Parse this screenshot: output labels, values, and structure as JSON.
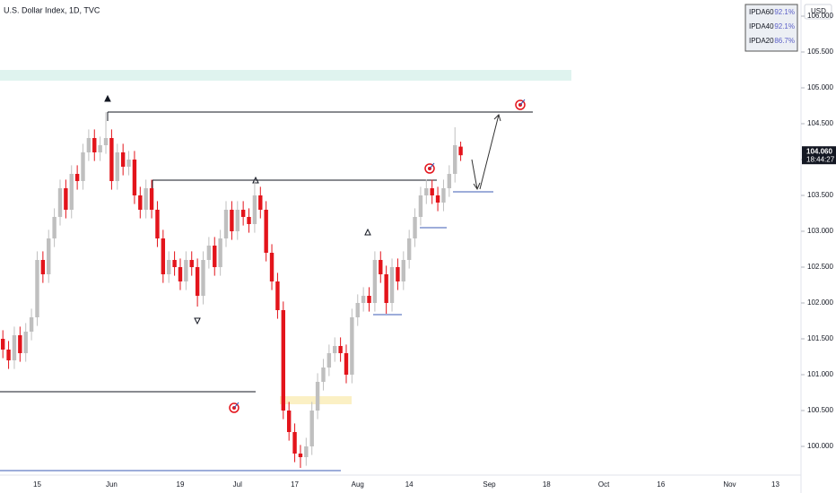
{
  "chart_data": {
    "type": "candlestick",
    "title": "U.S. Dollar Index, 1D, TVC",
    "currency": "USD",
    "categories": [
      null,
      null,
      null,
      null,
      null,
      null,
      "15",
      null,
      null,
      null,
      null,
      null,
      null,
      null,
      null,
      null,
      null,
      null,
      null,
      "Jun",
      null,
      null,
      null,
      null,
      null,
      null,
      null,
      null,
      null,
      null,
      null,
      "19",
      null,
      null,
      null,
      null,
      null,
      null,
      null,
      null,
      null,
      "Jul",
      null,
      null,
      null,
      null,
      null,
      null,
      null,
      null,
      null,
      "17",
      null,
      null,
      null,
      null,
      null,
      null,
      null,
      null,
      null,
      null,
      "Aug",
      null,
      null,
      null,
      null,
      null,
      null,
      null,
      null,
      "14",
      null,
      null,
      null,
      null,
      null,
      null,
      null,
      null,
      null,
      null,
      null,
      null,
      null,
      "Sep",
      null,
      null,
      null,
      null,
      null,
      null,
      null,
      null,
      null,
      "18",
      null,
      null,
      null,
      null,
      null,
      null,
      null,
      null,
      null,
      "Oct",
      null,
      null,
      null,
      null,
      null,
      null,
      null,
      null,
      null,
      "16",
      null,
      null,
      null,
      null,
      null,
      null,
      null,
      null,
      null,
      null,
      null,
      "Nov",
      null,
      null,
      null,
      null,
      null,
      null,
      null,
      "13"
    ],
    "open": [
      101.5,
      101.35,
      101.2,
      101.55,
      101.3,
      101.6,
      101.8,
      102.6,
      102.4,
      102.9,
      103.2,
      103.6,
      103.3,
      103.8,
      103.7,
      104.1,
      104.3,
      104.1,
      104.2,
      104.3,
      103.7,
      104.1,
      103.9,
      104.0,
      103.5,
      103.3,
      103.6,
      103.3,
      102.9,
      102.4,
      102.6,
      102.5,
      102.3,
      102.6,
      102.5,
      102.1,
      102.6,
      102.8,
      102.5,
      102.9,
      103.3,
      103.0,
      103.3,
      103.2,
      103.1,
      103.5,
      103.3,
      102.7,
      102.3,
      101.9,
      100.5,
      100.2,
      99.9,
      99.85,
      100.0,
      100.5,
      100.9,
      101.1,
      101.3,
      101.4,
      101.3,
      101.0,
      101.8,
      102.0,
      102.1,
      102.0,
      102.6,
      102.4,
      102.0,
      102.5,
      102.3,
      102.6,
      102.9,
      103.2,
      103.5,
      103.6,
      103.5,
      103.4,
      103.6,
      103.8,
      104.18,
      null,
      null,
      null,
      null,
      null,
      null,
      null,
      null,
      null,
      null,
      null,
      null,
      null,
      null,
      null,
      null,
      null,
      null,
      null,
      null,
      null,
      null,
      null,
      null,
      null,
      null,
      null,
      null,
      null,
      null,
      null,
      null,
      null,
      null,
      null,
      null,
      null,
      null,
      null,
      null,
      null,
      null,
      null,
      null,
      null,
      null,
      null,
      null,
      null,
      null,
      null,
      null,
      null,
      null,
      null
    ],
    "high": [
      101.62,
      101.47,
      101.67,
      101.67,
      101.72,
      101.92,
      102.72,
      102.72,
      103.02,
      103.32,
      103.72,
      103.72,
      103.92,
      103.92,
      104.22,
      104.42,
      104.42,
      104.32,
      104.66,
      104.42,
      104.22,
      104.22,
      104.12,
      104.12,
      103.62,
      103.72,
      103.72,
      103.42,
      103.02,
      102.72,
      102.72,
      102.62,
      102.72,
      102.72,
      102.62,
      102.72,
      102.92,
      102.92,
      103.02,
      103.42,
      103.42,
      103.42,
      103.42,
      103.32,
      103.71,
      103.62,
      103.42,
      102.82,
      102.42,
      102.02,
      100.62,
      100.32,
      100.02,
      100.12,
      100.62,
      101.02,
      101.22,
      101.42,
      101.52,
      101.52,
      101.42,
      101.92,
      102.12,
      102.22,
      102.22,
      102.72,
      102.72,
      102.52,
      102.62,
      102.62,
      102.72,
      103.02,
      103.32,
      103.62,
      103.72,
      103.72,
      103.62,
      103.72,
      103.92,
      104.45,
      104.25,
      null,
      null,
      null,
      null,
      null,
      null,
      null,
      null,
      null,
      null,
      null,
      null,
      null,
      null,
      null,
      null,
      null,
      null,
      null,
      null,
      null,
      null,
      null,
      null,
      null,
      null,
      null,
      null,
      null,
      null,
      null,
      null,
      null,
      null,
      null,
      null,
      null,
      null,
      null,
      null,
      null,
      null,
      null,
      null,
      null,
      null,
      null,
      null,
      null,
      null,
      null,
      null,
      null,
      null,
      null
    ],
    "low": [
      101.23,
      101.08,
      101.08,
      101.18,
      101.18,
      101.48,
      101.68,
      102.28,
      102.28,
      102.78,
      103.08,
      103.18,
      103.18,
      103.58,
      103.58,
      103.98,
      103.98,
      103.98,
      104.08,
      103.58,
      103.58,
      103.78,
      103.78,
      103.38,
      103.18,
      103.18,
      103.18,
      102.78,
      102.28,
      102.28,
      102.38,
      102.18,
      102.18,
      102.38,
      101.95,
      101.98,
      102.48,
      102.38,
      102.38,
      102.78,
      102.88,
      102.88,
      103.08,
      102.98,
      102.98,
      103.18,
      102.58,
      102.18,
      101.78,
      100.38,
      100.08,
      99.78,
      99.7,
      99.73,
      99.88,
      100.38,
      100.78,
      100.98,
      101.18,
      101.18,
      100.88,
      100.88,
      101.68,
      101.88,
      101.88,
      101.88,
      102.28,
      101.85,
      101.88,
      102.18,
      102.18,
      102.48,
      102.78,
      103.08,
      103.38,
      103.38,
      103.28,
      103.28,
      103.48,
      103.68,
      103.98,
      null,
      null,
      null,
      null,
      null,
      null,
      null,
      null,
      null,
      null,
      null,
      null,
      null,
      null,
      null,
      null,
      null,
      null,
      null,
      null,
      null,
      null,
      null,
      null,
      null,
      null,
      null,
      null,
      null,
      null,
      null,
      null,
      null,
      null,
      null,
      null,
      null,
      null,
      null,
      null,
      null,
      null,
      null,
      null,
      null,
      null,
      null,
      null,
      null,
      null,
      null,
      null,
      null,
      null,
      null
    ],
    "close": [
      101.35,
      101.2,
      101.55,
      101.3,
      101.6,
      101.8,
      102.6,
      102.4,
      102.9,
      103.2,
      103.6,
      103.3,
      103.8,
      103.7,
      104.1,
      104.3,
      104.1,
      104.2,
      104.3,
      103.7,
      104.1,
      103.9,
      104.0,
      103.5,
      103.3,
      103.6,
      103.3,
      102.9,
      102.4,
      102.6,
      102.5,
      102.3,
      102.6,
      102.5,
      102.1,
      102.6,
      102.8,
      102.5,
      102.9,
      103.3,
      103.0,
      103.3,
      103.2,
      103.1,
      103.5,
      103.3,
      102.7,
      102.3,
      101.9,
      100.5,
      100.2,
      99.9,
      99.85,
      100.0,
      100.5,
      100.9,
      101.1,
      101.3,
      101.4,
      101.3,
      101.0,
      101.8,
      102.0,
      102.1,
      102.0,
      102.6,
      102.4,
      102.0,
      102.5,
      102.3,
      102.6,
      102.9,
      103.2,
      103.5,
      103.6,
      103.5,
      103.4,
      103.6,
      103.8,
      104.2,
      104.06,
      null,
      null,
      null,
      null,
      null,
      null,
      null,
      null,
      null,
      null,
      null,
      null,
      null,
      null,
      null,
      null,
      null,
      null,
      null,
      null,
      null,
      null,
      null,
      null,
      null,
      null,
      null,
      null,
      null,
      null,
      null,
      null,
      null,
      null,
      null,
      null,
      null,
      null,
      null,
      null,
      null,
      null,
      null,
      null,
      null,
      null,
      null,
      null,
      null,
      null,
      null,
      null,
      null,
      null,
      null
    ],
    "up_color": "#bfbfbf",
    "down_color": "#e3141b",
    "ylim": [
      99.6,
      106.225
    ],
    "yticks": [
      {
        "value": 100,
        "label": "100.000"
      },
      {
        "value": 100.5,
        "label": "100.500"
      },
      {
        "value": 101,
        "label": "101.000"
      },
      {
        "value": 101.5,
        "label": "101.500"
      },
      {
        "value": 102,
        "label": "102.000"
      },
      {
        "value": 102.5,
        "label": "102.500"
      },
      {
        "value": 103,
        "label": "103.000"
      },
      {
        "value": 103.5,
        "label": "103.500"
      },
      {
        "value": 104,
        "label": "104.000"
      },
      {
        "value": 104.5,
        "label": "104.500"
      },
      {
        "value": 105,
        "label": "105.000"
      },
      {
        "value": 105.5,
        "label": "105.500"
      },
      {
        "value": 106,
        "label": "106.000"
      }
    ],
    "last_price": {
      "value": 104.06,
      "label": "104.060"
    },
    "countdown": "18:44:27",
    "indicators": {
      "names": [
        "IPDA60",
        "IPDA40",
        "IPDA20"
      ],
      "values": [
        92.1,
        92.1,
        86.7
      ],
      "value_labels": [
        "92.1%",
        "92.1%",
        "86.7%"
      ]
    }
  }
}
